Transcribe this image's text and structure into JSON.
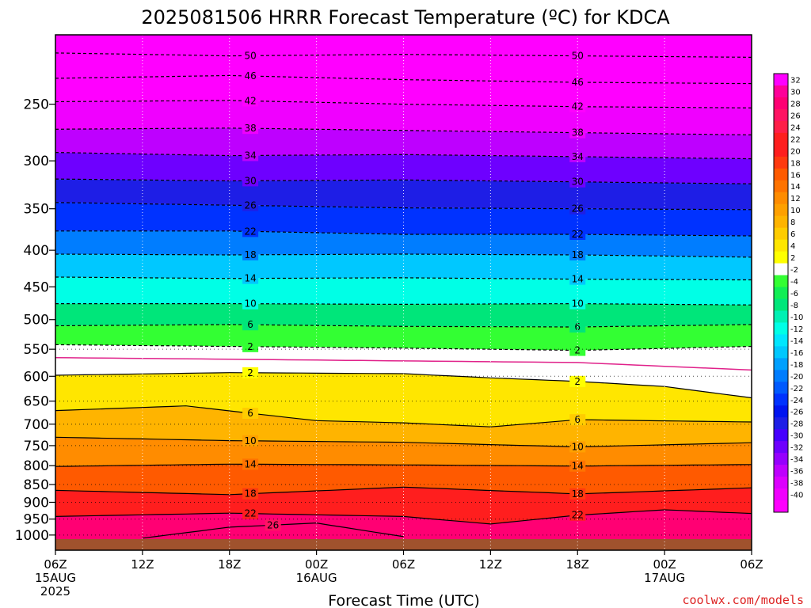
{
  "colors": {
    "ground": "#a0522d",
    "freezing_line": "#e0218a",
    "dashed_contour": "#000000",
    "solid_contour": "#000000",
    "credit": "#dd2222"
  },
  "chart_data": {
    "type": "heatmap",
    "title": "2025081506 HRRR Forecast Temperature (ºC) for KDCA",
    "xlabel": "Forecast Time (UTC)",
    "ylabel": "",
    "credit": "coolwx.com/models",
    "x_range_hours": [
      0,
      48
    ],
    "y_range_hpa": [
      200,
      1050
    ],
    "y_scale": "log",
    "x_ticks": [
      {
        "hour": 0,
        "label": "06Z",
        "sub1": "15AUG",
        "sub2": "2025"
      },
      {
        "hour": 6,
        "label": "12Z",
        "sub1": "",
        "sub2": ""
      },
      {
        "hour": 12,
        "label": "18Z",
        "sub1": "",
        "sub2": ""
      },
      {
        "hour": 18,
        "label": "00Z",
        "sub1": "16AUG",
        "sub2": ""
      },
      {
        "hour": 24,
        "label": "06Z",
        "sub1": "",
        "sub2": ""
      },
      {
        "hour": 30,
        "label": "12Z",
        "sub1": "",
        "sub2": ""
      },
      {
        "hour": 36,
        "label": "18Z",
        "sub1": "",
        "sub2": ""
      },
      {
        "hour": 42,
        "label": "00Z",
        "sub1": "17AUG",
        "sub2": ""
      },
      {
        "hour": 48,
        "label": "06Z",
        "sub1": "",
        "sub2": ""
      }
    ],
    "y_ticks": [
      250,
      300,
      350,
      400,
      450,
      500,
      550,
      600,
      650,
      700,
      750,
      800,
      850,
      900,
      950,
      1000
    ],
    "colorbar": {
      "labels": [
        32,
        30,
        28,
        26,
        24,
        22,
        20,
        18,
        16,
        14,
        12,
        10,
        8,
        6,
        4,
        2,
        -2,
        -4,
        -6,
        -8,
        -10,
        -12,
        -14,
        -16,
        -18,
        -20,
        -22,
        -24,
        -26,
        -28,
        -30,
        -32,
        -34,
        -36,
        -38,
        -40
      ],
      "colors": [
        "#ff00ff",
        "#ff0099",
        "#ff0073",
        "#ff1463",
        "#ff1e48",
        "#ff1e1e",
        "#ff1e1e",
        "#ff3a0f",
        "#ff5a00",
        "#ff7300",
        "#ff8c00",
        "#ffa000",
        "#ffb400",
        "#ffcc00",
        "#ffe600",
        "#ffff00",
        "#ffffff",
        "#33ff33",
        "#11ee55",
        "#00e67a",
        "#00f0b4",
        "#00ffe6",
        "#00e6ff",
        "#00c8ff",
        "#00a0ff",
        "#007dff",
        "#005aff",
        "#0032ff",
        "#0014f0",
        "#1e1ee6",
        "#4600ff",
        "#6e00ff",
        "#9600ff",
        "#be00ff",
        "#dc00ff",
        "#f000ff",
        "#ff00ff"
      ]
    },
    "series": [
      {
        "level": -50,
        "points": [
          [
            0,
            212
          ],
          [
            12,
            214
          ],
          [
            24,
            213
          ],
          [
            36,
            214
          ],
          [
            48,
            215
          ]
        ]
      },
      {
        "level": -46,
        "points": [
          [
            0,
            230
          ],
          [
            12,
            228
          ],
          [
            24,
            231
          ],
          [
            36,
            233
          ],
          [
            48,
            234
          ]
        ]
      },
      {
        "level": -42,
        "points": [
          [
            0,
            248
          ],
          [
            12,
            247
          ],
          [
            24,
            250
          ],
          [
            36,
            252
          ],
          [
            48,
            253
          ]
        ]
      },
      {
        "level": -38,
        "points": [
          [
            0,
            271
          ],
          [
            12,
            270
          ],
          [
            24,
            272
          ],
          [
            36,
            274
          ],
          [
            48,
            276
          ]
        ]
      },
      {
        "level": -34,
        "points": [
          [
            0,
            292
          ],
          [
            12,
            295
          ],
          [
            24,
            294
          ],
          [
            36,
            296
          ],
          [
            48,
            298
          ]
        ]
      },
      {
        "level": -30,
        "points": [
          [
            0,
            318
          ],
          [
            12,
            320
          ],
          [
            24,
            319
          ],
          [
            36,
            321
          ],
          [
            48,
            323
          ]
        ]
      },
      {
        "level": -26,
        "points": [
          [
            0,
            343
          ],
          [
            12,
            346
          ],
          [
            24,
            349
          ],
          [
            36,
            350
          ],
          [
            48,
            351
          ]
        ]
      },
      {
        "level": -22,
        "points": [
          [
            0,
            376
          ],
          [
            12,
            376
          ],
          [
            24,
            380
          ],
          [
            36,
            380
          ],
          [
            48,
            382
          ]
        ]
      },
      {
        "level": -18,
        "points": [
          [
            0,
            405
          ],
          [
            12,
            406
          ],
          [
            24,
            405
          ],
          [
            36,
            406
          ],
          [
            48,
            409
          ]
        ]
      },
      {
        "level": -14,
        "points": [
          [
            0,
            436
          ],
          [
            12,
            438
          ],
          [
            24,
            437
          ],
          [
            36,
            439
          ],
          [
            48,
            440
          ]
        ]
      },
      {
        "level": -10,
        "points": [
          [
            0,
            475
          ],
          [
            12,
            475
          ],
          [
            24,
            476
          ],
          [
            36,
            475
          ],
          [
            48,
            477
          ]
        ]
      },
      {
        "level": -6,
        "points": [
          [
            0,
            510
          ],
          [
            12,
            508
          ],
          [
            24,
            511
          ],
          [
            36,
            512
          ],
          [
            48,
            508
          ]
        ]
      },
      {
        "level": -2,
        "points": [
          [
            0,
            542
          ],
          [
            12,
            545
          ],
          [
            24,
            548
          ],
          [
            36,
            552
          ],
          [
            48,
            545
          ]
        ]
      },
      {
        "level": 0,
        "points": [
          [
            0,
            565
          ],
          [
            12,
            568
          ],
          [
            24,
            571
          ],
          [
            36,
            574
          ],
          [
            48,
            588
          ]
        ]
      },
      {
        "level": 2,
        "points": [
          [
            0,
            598
          ],
          [
            12,
            593
          ],
          [
            24,
            595
          ],
          [
            30,
            603
          ],
          [
            36,
            610
          ],
          [
            42,
            620
          ],
          [
            48,
            643
          ]
        ]
      },
      {
        "level": 6,
        "points": [
          [
            0,
            670
          ],
          [
            9,
            660
          ],
          [
            18,
            692
          ],
          [
            24,
            697
          ],
          [
            30,
            706
          ],
          [
            36,
            690
          ],
          [
            48,
            695
          ]
        ]
      },
      {
        "level": 10,
        "points": [
          [
            0,
            730
          ],
          [
            12,
            738
          ],
          [
            24,
            742
          ],
          [
            36,
            753
          ],
          [
            48,
            743
          ]
        ]
      },
      {
        "level": 14,
        "points": [
          [
            0,
            802
          ],
          [
            12,
            796
          ],
          [
            24,
            798
          ],
          [
            36,
            801
          ],
          [
            48,
            797
          ]
        ]
      },
      {
        "level": 18,
        "points": [
          [
            0,
            866
          ],
          [
            12,
            878
          ],
          [
            24,
            857
          ],
          [
            36,
            876
          ],
          [
            48,
            859
          ]
        ]
      },
      {
        "level": 22,
        "points": [
          [
            0,
            942
          ],
          [
            12,
            932
          ],
          [
            24,
            942
          ],
          [
            30,
            965
          ],
          [
            36,
            938
          ],
          [
            42,
            922
          ],
          [
            48,
            933
          ]
        ]
      },
      {
        "level": 26,
        "points": [
          [
            6,
            1010
          ],
          [
            12,
            975
          ],
          [
            18,
            962
          ],
          [
            24,
            1005
          ]
        ]
      }
    ]
  }
}
